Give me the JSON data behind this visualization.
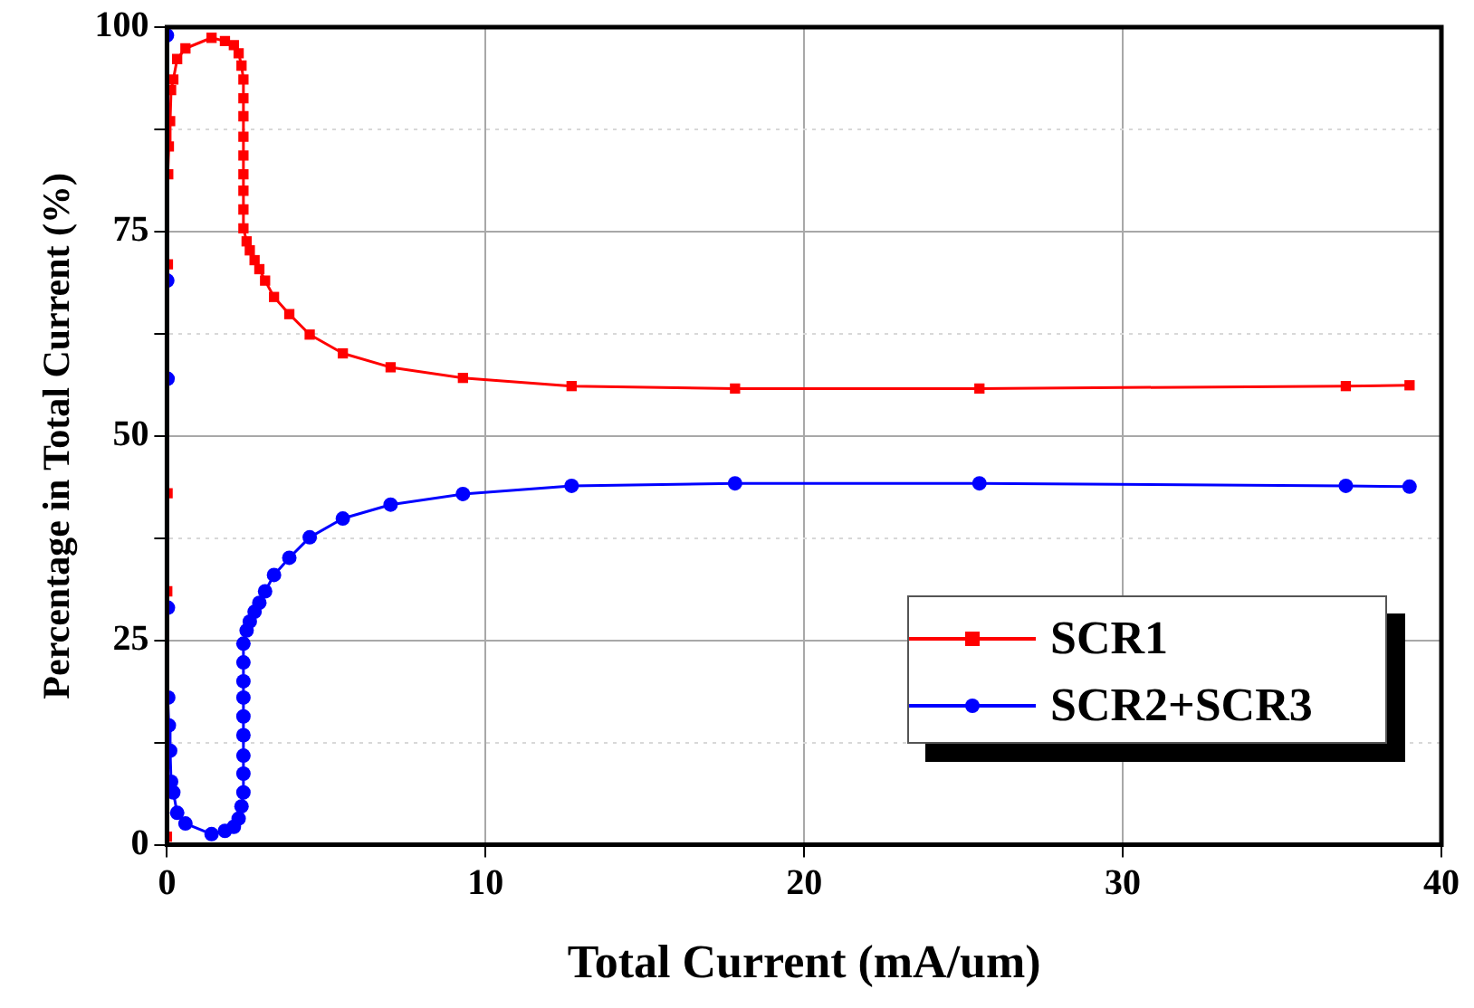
{
  "chart_data": {
    "type": "line",
    "xlabel": "Total Current (mA/um)",
    "ylabel": "Percentage in Total Current (%)",
    "xlim": [
      0,
      40
    ],
    "xticks": [
      0,
      10,
      20,
      30,
      40
    ],
    "ylim": [
      0,
      100
    ],
    "yticks": [
      0,
      {
        "value": 12.5,
        "label": null
      },
      25,
      {
        "value": 37.5,
        "label": null
      },
      50,
      {
        "value": 62.5,
        "label": null
      },
      75,
      {
        "value": 87.5,
        "label": null
      },
      100
    ],
    "grid": true,
    "legend": "right",
    "line_style": "solid",
    "series": [
      {
        "name": "SCR1",
        "color": "#ff0000",
        "marker": "square",
        "x": [
          0,
          0.01,
          0.02,
          0.03,
          0.04,
          0.06,
          0.1,
          0.13,
          0.2,
          0.32,
          0.58,
          1.4,
          1.82,
          2.1,
          2.25,
          2.34,
          2.4,
          2.4,
          2.4,
          2.4,
          2.4,
          2.4,
          2.4,
          2.4,
          2.4,
          2.5,
          2.6,
          2.75,
          2.9,
          3.08,
          3.36,
          3.84,
          4.48,
          5.52,
          7.02,
          9.29,
          12.7,
          17.83,
          25.5,
          37.0,
          39.0
        ],
        "values": [
          1,
          31,
          43,
          71,
          82,
          85.4,
          88.5,
          92.3,
          93.6,
          96.1,
          97.4,
          98.7,
          98.3,
          97.8,
          96.8,
          95.3,
          93.6,
          91.3,
          89.1,
          86.6,
          84.3,
          82.0,
          80.0,
          77.7,
          75.4,
          73.8,
          72.7,
          71.5,
          70.4,
          69.0,
          67.0,
          64.9,
          62.4,
          60.1,
          58.4,
          57.1,
          56.1,
          55.8,
          55.8,
          56.1,
          56.2
        ]
      },
      {
        "name": "SCR2+SCR3",
        "color": "#0000ff",
        "marker": "circle",
        "x": [
          0,
          0.01,
          0.02,
          0.03,
          0.04,
          0.06,
          0.1,
          0.13,
          0.2,
          0.32,
          0.58,
          1.4,
          1.82,
          2.1,
          2.25,
          2.34,
          2.4,
          2.4,
          2.4,
          2.4,
          2.4,
          2.4,
          2.4,
          2.4,
          2.4,
          2.5,
          2.6,
          2.75,
          2.9,
          3.08,
          3.36,
          3.84,
          4.48,
          5.52,
          7.02,
          9.29,
          12.7,
          17.83,
          25.5,
          37.0,
          39.0
        ],
        "values": [
          99,
          69,
          57,
          29,
          18,
          14.6,
          11.5,
          7.7,
          6.4,
          3.9,
          2.6,
          1.3,
          1.7,
          2.2,
          3.2,
          4.7,
          6.4,
          8.7,
          10.9,
          13.4,
          15.7,
          18.0,
          20.0,
          22.3,
          24.6,
          26.2,
          27.3,
          28.5,
          29.6,
          31.0,
          33.0,
          35.1,
          37.6,
          39.9,
          41.6,
          42.9,
          43.9,
          44.2,
          44.2,
          43.9,
          43.8
        ]
      }
    ]
  }
}
